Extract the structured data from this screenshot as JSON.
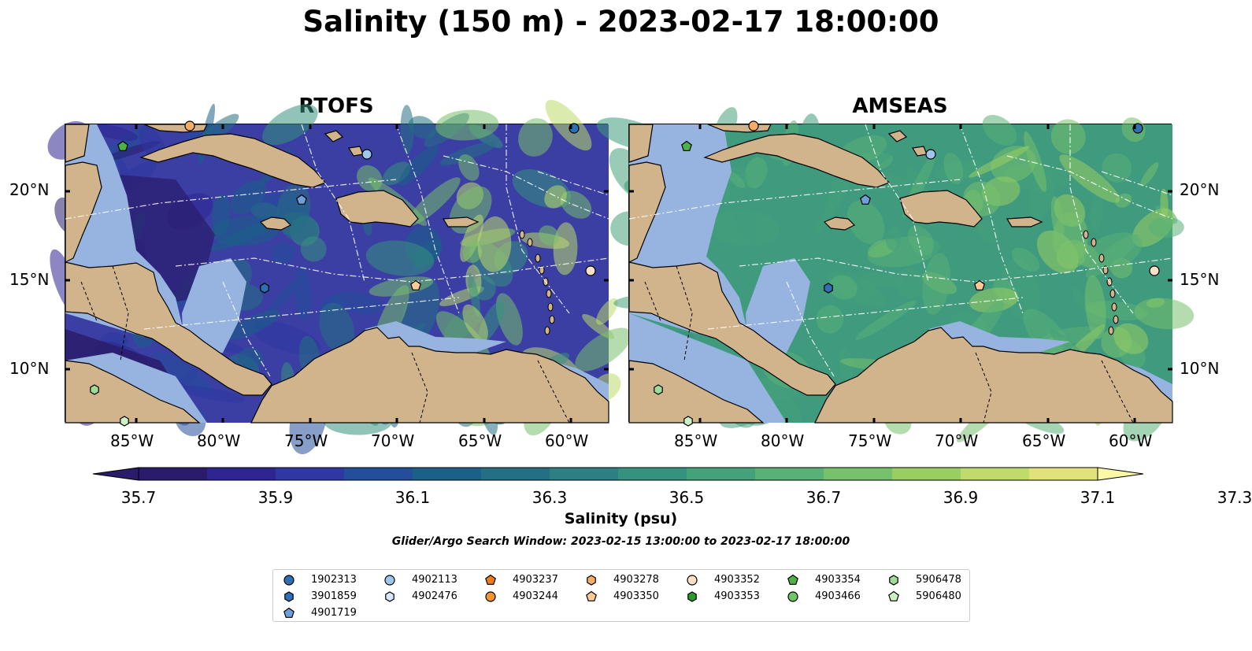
{
  "title": "Salinity (150 m) - 2023-02-17 18:00:00",
  "panels": [
    {
      "title": "RTOFS",
      "ocean_color": "#3b3fa3"
    },
    {
      "title": "AMSEAS",
      "ocean_color": "#3f9a7e"
    }
  ],
  "x_ticks": [
    "85°W",
    "80°W",
    "75°W",
    "70°W",
    "65°W",
    "60°W"
  ],
  "y_ticks": [
    "20°N",
    "15°N",
    "10°N"
  ],
  "colorbar": {
    "ticks": [
      "35.7",
      "35.9",
      "36.1",
      "36.3",
      "36.5",
      "36.7",
      "36.9",
      "37.1",
      "37.3"
    ],
    "colors": [
      "#2a1c6b",
      "#2d2592",
      "#2e37a2",
      "#244e9a",
      "#1a6087",
      "#256f84",
      "#2d7f84",
      "#36917f",
      "#45a17a",
      "#5ab176",
      "#77c06c",
      "#99ce62",
      "#bedb6b",
      "#e1e37a"
    ],
    "extend_low_color": "#2a1c6b",
    "extend_high_color": "#fbf8a8",
    "label": "Salinity (psu)"
  },
  "search_window": "Glider/Argo Search Window: 2023-02-15 13:00:00 to 2023-02-17 18:00:00",
  "legend": [
    {
      "label": "1902313",
      "marker": "circle",
      "color": "#2f6fb5"
    },
    {
      "label": "3901859",
      "marker": "hexagon",
      "color": "#2f6fb5"
    },
    {
      "label": "4901719",
      "marker": "pentagon",
      "color": "#6f9fd8"
    },
    {
      "label": "4902113",
      "marker": "circle",
      "color": "#9ec7ee"
    },
    {
      "label": "4902476",
      "marker": "hexagon",
      "color": "#d4e9fb"
    },
    {
      "label": "4903237",
      "marker": "pentagon",
      "color": "#f07d16"
    },
    {
      "label": "4903244",
      "marker": "circle",
      "color": "#f5952e"
    },
    {
      "label": "4903278",
      "marker": "hexagon",
      "color": "#f7ad66"
    },
    {
      "label": "4903350",
      "marker": "pentagon",
      "color": "#fbcb95"
    },
    {
      "label": "4903352",
      "marker": "circle",
      "color": "#fde0c8"
    },
    {
      "label": "4903353",
      "marker": "hexagon",
      "color": "#2e9a2c"
    },
    {
      "label": "4903354",
      "marker": "pentagon",
      "color": "#4db147"
    },
    {
      "label": "4903466",
      "marker": "circle",
      "color": "#70c666"
    },
    {
      "label": "5906478",
      "marker": "hexagon",
      "color": "#a1dc96"
    },
    {
      "label": "5906480",
      "marker": "pentagon",
      "color": "#cdf0c4"
    }
  ],
  "colors": {
    "land": "#d2b48c",
    "shelf": "#96b4df"
  }
}
